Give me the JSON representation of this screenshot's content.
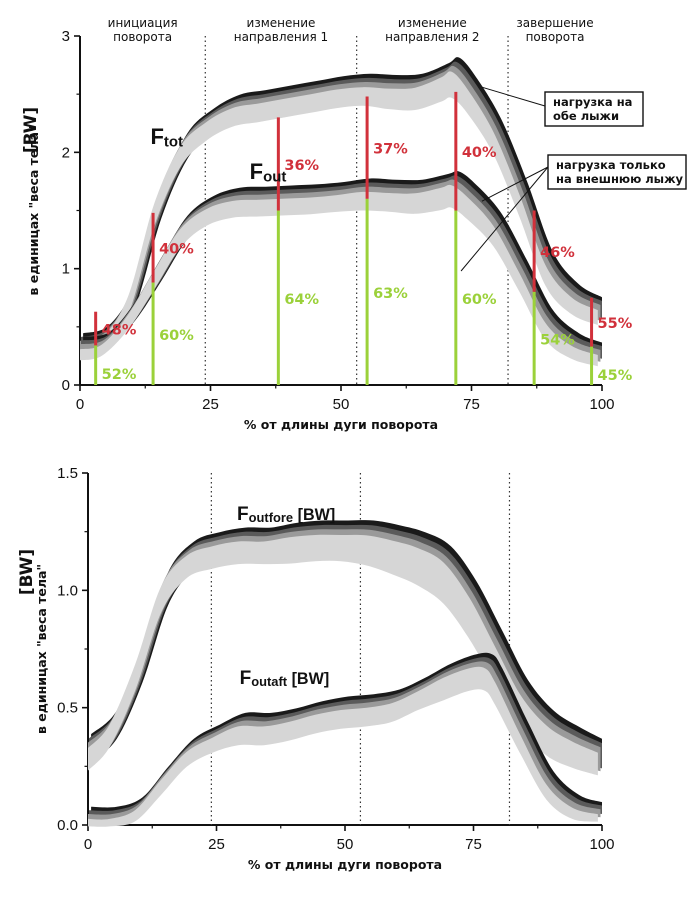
{
  "chart_data": [
    {
      "type": "area",
      "xlabel": "% от длины дуги поворота",
      "ylabel": "в единицах \"веса тела\"",
      "y_unit": "[BW]",
      "xlim": [
        0,
        100
      ],
      "ylim": [
        0,
        3
      ],
      "x_ticks": [
        "0",
        "25",
        "50",
        "75",
        "100"
      ],
      "y_ticks": [
        "0",
        "1",
        "2",
        "3"
      ],
      "phase_boundaries": [
        24,
        53,
        82
      ],
      "phases": [
        {
          "label": "инициация\nповорота",
          "x": 12
        },
        {
          "label": "изменение\nнаправления 1",
          "x": 38.5
        },
        {
          "label": "изменение\nнаправления 2",
          "x": 67.5
        },
        {
          "label": "завершение\nповорота",
          "x": 91
        }
      ],
      "series": [
        {
          "label": "F",
          "sub": "tot",
          "label_x": 13.5,
          "label_y": 2.07,
          "x": [
            0,
            5,
            10,
            15,
            20,
            25,
            30,
            35,
            40,
            45,
            50,
            55,
            60,
            65,
            70,
            72,
            75,
            80,
            85,
            90,
            95,
            100
          ],
          "y": [
            0.32,
            0.38,
            0.72,
            1.5,
            2.0,
            2.22,
            2.34,
            2.38,
            2.42,
            2.46,
            2.5,
            2.52,
            2.5,
            2.5,
            2.58,
            2.62,
            2.48,
            2.12,
            1.58,
            0.98,
            0.72,
            0.62
          ],
          "band": [
            0.07,
            0.08,
            0.1,
            0.12,
            0.11,
            0.1,
            0.1,
            0.1,
            0.1,
            0.1,
            0.1,
            0.1,
            0.11,
            0.12,
            0.13,
            0.14,
            0.13,
            0.12,
            0.12,
            0.11,
            0.09,
            0.08
          ]
        },
        {
          "label": "F",
          "sub": "out",
          "label_x": 32.5,
          "label_y": 1.77,
          "x": [
            0,
            5,
            10,
            15,
            20,
            25,
            30,
            35,
            40,
            45,
            50,
            55,
            60,
            65,
            70,
            72,
            75,
            80,
            85,
            90,
            95,
            100
          ],
          "y": [
            0.3,
            0.34,
            0.58,
            0.94,
            1.3,
            1.48,
            1.55,
            1.56,
            1.57,
            1.58,
            1.6,
            1.62,
            1.61,
            1.6,
            1.64,
            1.66,
            1.56,
            1.32,
            0.92,
            0.5,
            0.32,
            0.25
          ],
          "band": [
            0.06,
            0.06,
            0.08,
            0.1,
            0.1,
            0.09,
            0.09,
            0.09,
            0.09,
            0.09,
            0.09,
            0.1,
            0.1,
            0.11,
            0.12,
            0.12,
            0.12,
            0.11,
            0.1,
            0.09,
            0.07,
            0.06
          ]
        }
      ],
      "markers": [
        {
          "x": 3,
          "tot": 0.63,
          "out": 0.34,
          "red": "48%",
          "green": "52%"
        },
        {
          "x": 14,
          "tot": 1.48,
          "out": 0.88,
          "red": "40%",
          "green": "60%"
        },
        {
          "x": 38,
          "tot": 2.3,
          "out": 1.5,
          "red": "36%",
          "green": "64%"
        },
        {
          "x": 55,
          "tot": 2.48,
          "out": 1.6,
          "red": "37%",
          "green": "63%"
        },
        {
          "x": 72,
          "tot": 2.52,
          "out": 1.5,
          "red": "40%",
          "green": "60%"
        },
        {
          "x": 87,
          "tot": 1.5,
          "out": 0.8,
          "red": "46%",
          "green": "54%"
        },
        {
          "x": 98,
          "tot": 0.75,
          "out": 0.33,
          "red": "55%",
          "green": "45%"
        }
      ],
      "callouts": [
        {
          "text": [
            "нагрузка на",
            "обе  лыжи"
          ]
        },
        {
          "text": [
            "нагрузка  только",
            "на внешнюю лыжу"
          ]
        }
      ]
    },
    {
      "type": "area",
      "xlabel": "% от длины дуги поворота",
      "ylabel": "в единицах \"веса тела\"",
      "y_unit": "[BW]",
      "xlim": [
        0,
        100
      ],
      "ylim": [
        0,
        1.5
      ],
      "x_ticks": [
        "0",
        "25",
        "50",
        "75",
        "100"
      ],
      "y_ticks": [
        "0.0",
        "0.5",
        "1.0",
        "1.5"
      ],
      "phase_boundaries": [
        24,
        53,
        82
      ],
      "series": [
        {
          "label": "F",
          "sub": "outfore",
          "suffix": " [BW]",
          "label_x": 29,
          "label_y": 1.3,
          "x": [
            0,
            5,
            10,
            15,
            20,
            25,
            30,
            35,
            40,
            45,
            50,
            55,
            60,
            65,
            70,
            75,
            80,
            85,
            90,
            95,
            100
          ],
          "y": [
            0.3,
            0.4,
            0.65,
            0.98,
            1.12,
            1.16,
            1.18,
            1.18,
            1.19,
            1.2,
            1.2,
            1.19,
            1.16,
            1.12,
            1.05,
            0.9,
            0.7,
            0.5,
            0.38,
            0.32,
            0.28
          ],
          "band": [
            0.06,
            0.06,
            0.07,
            0.07,
            0.06,
            0.06,
            0.06,
            0.06,
            0.07,
            0.07,
            0.07,
            0.08,
            0.09,
            0.1,
            0.11,
            0.11,
            0.1,
            0.09,
            0.08,
            0.07,
            0.06
          ]
        },
        {
          "label": "F",
          "sub": "outaft",
          "suffix": " [BW]",
          "label_x": 29.5,
          "label_y": 0.6,
          "x": [
            0,
            5,
            10,
            15,
            20,
            25,
            30,
            35,
            40,
            45,
            50,
            55,
            60,
            65,
            70,
            75,
            78,
            80,
            85,
            90,
            95,
            100
          ],
          "y": [
            0.03,
            0.03,
            0.06,
            0.18,
            0.3,
            0.36,
            0.4,
            0.4,
            0.42,
            0.45,
            0.47,
            0.48,
            0.5,
            0.55,
            0.6,
            0.64,
            0.64,
            0.58,
            0.36,
            0.16,
            0.07,
            0.05
          ],
          "band": [
            0.02,
            0.02,
            0.03,
            0.04,
            0.04,
            0.04,
            0.05,
            0.05,
            0.05,
            0.05,
            0.05,
            0.05,
            0.05,
            0.05,
            0.06,
            0.06,
            0.06,
            0.06,
            0.05,
            0.04,
            0.03,
            0.02
          ]
        }
      ]
    }
  ]
}
